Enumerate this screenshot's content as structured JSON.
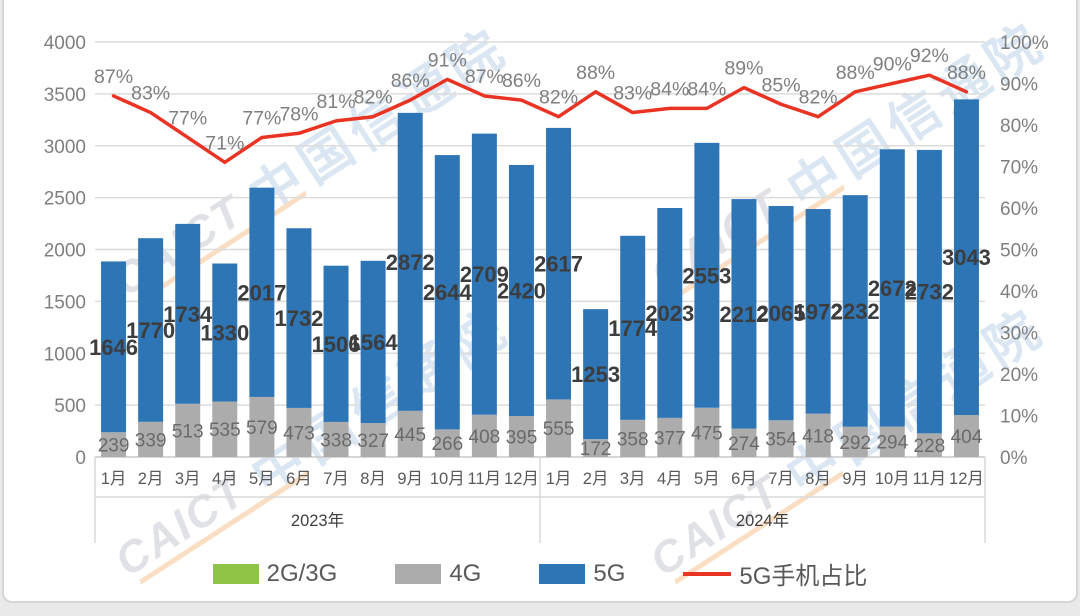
{
  "watermark": {
    "caict": "CAICT",
    "cn": "中国信通院"
  },
  "chart_data": {
    "type": "bar",
    "subtype": "stacked-column-with-line",
    "title": "",
    "xlabel": "",
    "ylabel": "",
    "grid": true,
    "legend_position": "bottom",
    "categories": [
      "1月",
      "2月",
      "3月",
      "4月",
      "5月",
      "6月",
      "7月",
      "8月",
      "9月",
      "10月",
      "11月",
      "12月",
      "1月",
      "2月",
      "3月",
      "4月",
      "5月",
      "6月",
      "7月",
      "8月",
      "9月",
      "10月",
      "11月",
      "12月"
    ],
    "year_groups": [
      {
        "label": "2023年",
        "span": 12
      },
      {
        "label": "2024年",
        "span": 12
      }
    ],
    "series": [
      {
        "name": "2G/3G",
        "color": "#8EC549",
        "labeled": false,
        "values": [
          0,
          0,
          0,
          0,
          0,
          0,
          0,
          0,
          0,
          0,
          0,
          0,
          0,
          0,
          0,
          0,
          0,
          0,
          0,
          0,
          0,
          0,
          0,
          0
        ]
      },
      {
        "name": "4G",
        "color": "#ACACAC",
        "labeled": true,
        "values": [
          239,
          339,
          513,
          535,
          579,
          473,
          338,
          327,
          445,
          266,
          408,
          395,
          555,
          172,
          358,
          377,
          475,
          274,
          354,
          418,
          292,
          294,
          228,
          404
        ]
      },
      {
        "name": "5G",
        "color": "#2E75B6",
        "labeled": true,
        "values": [
          1646,
          1770,
          1734,
          1330,
          2017,
          1732,
          1506,
          1564,
          2872,
          2644,
          2709,
          2420,
          2617,
          1253,
          1774,
          2023,
          2553,
          2212,
          2065,
          1972,
          2232,
          2672,
          2732,
          3043
        ]
      }
    ],
    "line_series": {
      "name": "5G手机占比",
      "color": "#E93323",
      "unit": "%",
      "values": [
        87,
        83,
        77,
        71,
        77,
        78,
        81,
        82,
        86,
        91,
        87,
        86,
        82,
        88,
        83,
        84,
        84,
        89,
        85,
        82,
        88,
        90,
        92,
        88
      ]
    },
    "left_axis": {
      "min": 0,
      "max": 4000,
      "step": 500,
      "tick_labels": [
        "0",
        "500",
        "1000",
        "1500",
        "2000",
        "2500",
        "3000",
        "3500",
        "4000"
      ]
    },
    "right_axis": {
      "min": 0,
      "max": 100,
      "step": 10,
      "tick_labels": [
        "0%",
        "10%",
        "20%",
        "30%",
        "40%",
        "50%",
        "60%",
        "70%",
        "80%",
        "90%",
        "100%"
      ]
    },
    "legend": [
      {
        "label": "2G/3G",
        "color": "#8EC549",
        "type": "swatch"
      },
      {
        "label": "4G",
        "color": "#ACACAC",
        "type": "swatch"
      },
      {
        "label": "5G",
        "color": "#2E75B6",
        "type": "swatch"
      },
      {
        "label": "5G手机占比",
        "color": "#E93323",
        "type": "line"
      }
    ]
  }
}
